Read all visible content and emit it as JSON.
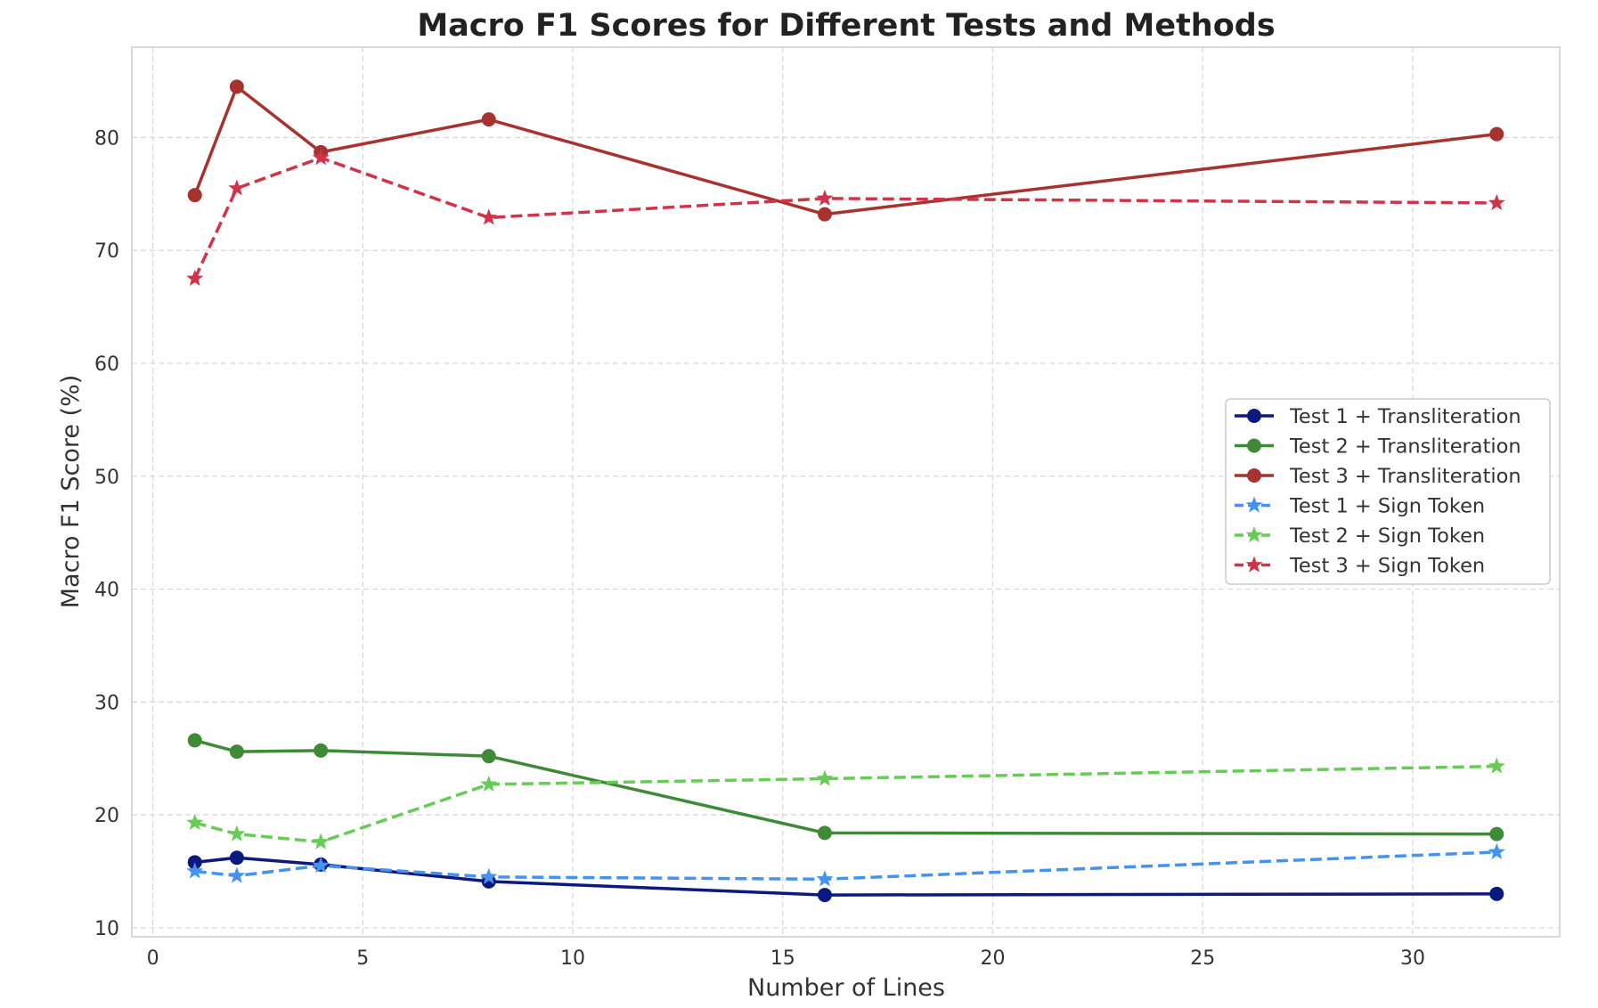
{
  "chart_data": {
    "type": "line",
    "title": "Macro F1 Scores for Different Tests and Methods",
    "xlabel": "Number of Lines",
    "ylabel": "Macro F1 Score (%)",
    "xlim": [
      -0.5,
      33.5
    ],
    "ylim": [
      9.2,
      88.0
    ],
    "xticks": [
      0,
      5,
      10,
      15,
      20,
      25,
      30
    ],
    "yticks": [
      10,
      20,
      30,
      40,
      50,
      60,
      70,
      80
    ],
    "grid": true,
    "legend_position": "center-right",
    "x": [
      1,
      2,
      4,
      8,
      16,
      32
    ],
    "series": [
      {
        "name": "Test 1 + Transliteration",
        "values": [
          15.8,
          16.2,
          15.6,
          14.1,
          12.9,
          13.0
        ],
        "color": "#0c1a80",
        "style": "solid",
        "marker": "circle"
      },
      {
        "name": "Test 2 + Transliteration",
        "values": [
          26.6,
          25.6,
          25.7,
          25.2,
          18.4,
          18.3
        ],
        "color": "#3f8a36",
        "style": "solid",
        "marker": "circle"
      },
      {
        "name": "Test 3 + Transliteration",
        "values": [
          74.9,
          84.5,
          78.7,
          81.6,
          73.2,
          80.3
        ],
        "color": "#a8322d",
        "style": "solid",
        "marker": "circle"
      },
      {
        "name": "Test 1 + Sign Token",
        "values": [
          15.0,
          14.6,
          15.5,
          14.5,
          14.3,
          16.7
        ],
        "color": "#4693ef",
        "style": "dashed",
        "marker": "star"
      },
      {
        "name": "Test 2 + Sign Token",
        "values": [
          19.3,
          18.3,
          17.6,
          22.7,
          23.2,
          24.3
        ],
        "color": "#66cc55",
        "style": "dashed",
        "marker": "star"
      },
      {
        "name": "Test 3 + Sign Token",
        "values": [
          67.5,
          75.5,
          78.2,
          72.9,
          74.6,
          74.2
        ],
        "color": "#d13448",
        "style": "dashed",
        "marker": "star"
      }
    ]
  }
}
